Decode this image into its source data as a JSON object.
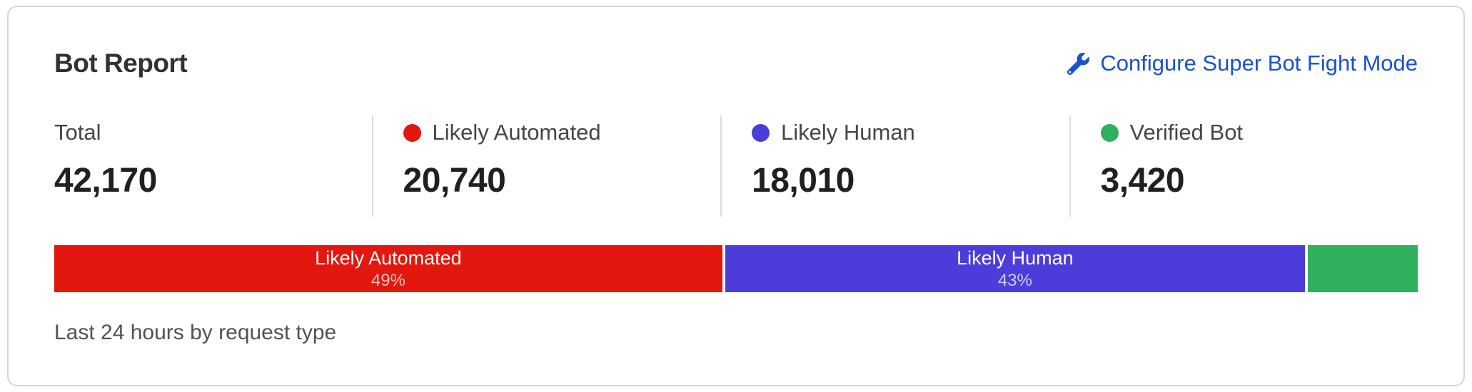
{
  "card": {
    "title": "Bot Report",
    "configure_link": {
      "label": "Configure Super Bot Fight Mode",
      "icon": "wrench-icon",
      "color": "#1b51ce"
    },
    "stats": [
      {
        "label": "Total",
        "value": "42,170",
        "dot_color": null
      },
      {
        "label": "Likely Automated",
        "value": "20,740",
        "dot_color": "#e2170d"
      },
      {
        "label": "Likely Human",
        "value": "18,010",
        "dot_color": "#4c3ddb"
      },
      {
        "label": "Verified Bot",
        "value": "3,420",
        "dot_color": "#2eb05c"
      }
    ],
    "footer": "Last 24 hours by request type"
  },
  "chart_data": {
    "type": "bar",
    "orientation": "horizontal-stacked",
    "title": "Bot Report",
    "caption": "Last 24 hours by request type",
    "total": 42170,
    "categories": [
      "Likely Automated",
      "Likely Human",
      "Verified Bot"
    ],
    "values": [
      20740,
      18010,
      3420
    ],
    "segments": [
      {
        "name": "Likely Automated",
        "value": 20740,
        "pct": 49.2,
        "bar_label": "Likely Automated",
        "bar_pct_label": "49%",
        "color": "#e2170d"
      },
      {
        "name": "Likely Human",
        "value": 18010,
        "pct": 42.7,
        "bar_label": "Likely Human",
        "bar_pct_label": "43%",
        "color": "#4c3ddb"
      },
      {
        "name": "Verified Bot",
        "value": 3420,
        "pct": 8.1,
        "bar_label": "",
        "bar_pct_label": "",
        "color": "#2eb05c"
      }
    ]
  },
  "colors": {
    "card_border": "#d6d6d6",
    "link_blue": "#1b51ce",
    "likely_automated_red": "#e2170d",
    "likely_human_purple": "#4c3ddb",
    "verified_bot_green": "#2eb05c"
  }
}
